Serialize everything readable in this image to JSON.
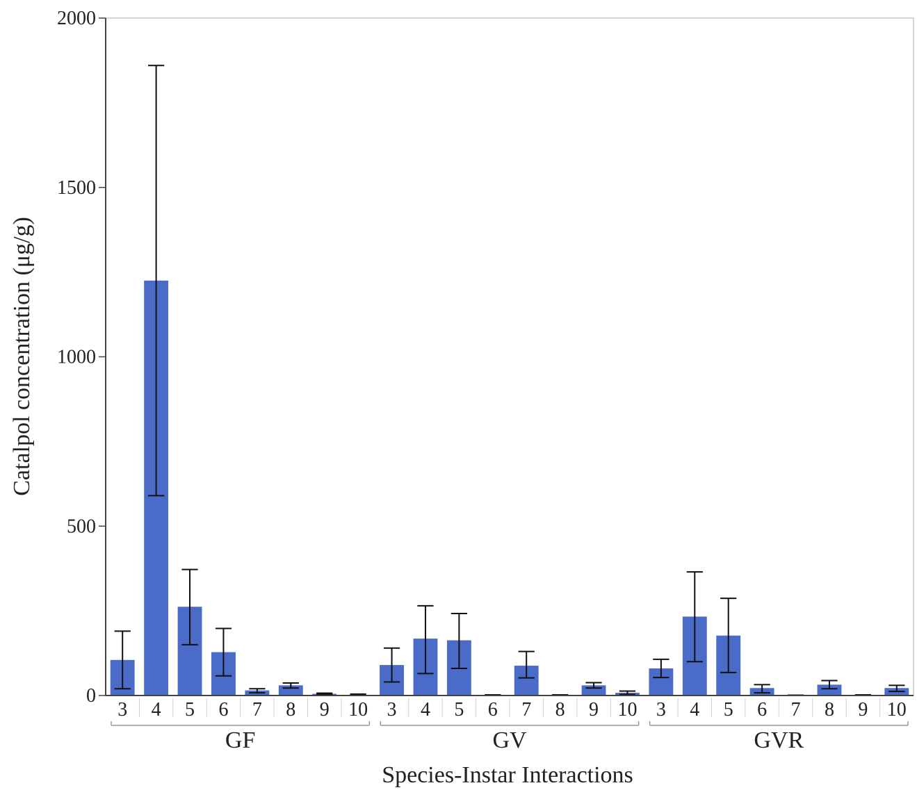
{
  "chart_data": {
    "type": "bar",
    "xlabel": "Species-Instar Interactions",
    "ylabel": "Catalpol concentration (μg/g)",
    "ylim": [
      0,
      2000
    ],
    "yticks": [
      0,
      500,
      1000,
      1500,
      2000
    ],
    "grid": false,
    "bar_color": "#4a6bc8",
    "groups": [
      {
        "name": "GF",
        "categories": [
          "3",
          "4",
          "5",
          "6",
          "7",
          "8",
          "9",
          "10"
        ],
        "values": [
          105,
          1225,
          262,
          128,
          15,
          30,
          5,
          2
        ],
        "error": [
          [
            20,
            190
          ],
          [
            590,
            1860
          ],
          [
            150,
            372
          ],
          [
            58,
            198
          ],
          [
            8,
            20
          ],
          [
            22,
            37
          ],
          [
            3,
            7
          ],
          [
            0,
            4
          ]
        ]
      },
      {
        "name": "GV",
        "categories": [
          "3",
          "4",
          "5",
          "6",
          "7",
          "8",
          "9",
          "10"
        ],
        "values": [
          90,
          168,
          163,
          0,
          88,
          0,
          30,
          8
        ],
        "error": [
          [
            40,
            140
          ],
          [
            65,
            265
          ],
          [
            80,
            242
          ],
          [
            0,
            2
          ],
          [
            52,
            130
          ],
          [
            0,
            2
          ],
          [
            22,
            38
          ],
          [
            3,
            13
          ]
        ]
      },
      {
        "name": "GVR",
        "categories": [
          "3",
          "4",
          "5",
          "6",
          "7",
          "8",
          "9",
          "10"
        ],
        "values": [
          80,
          233,
          177,
          22,
          0,
          32,
          0,
          22
        ],
        "error": [
          [
            53,
            107
          ],
          [
            100,
            365
          ],
          [
            68,
            287
          ],
          [
            8,
            32
          ],
          [
            0,
            1
          ],
          [
            20,
            44
          ],
          [
            0,
            2
          ],
          [
            12,
            30
          ]
        ]
      }
    ]
  }
}
